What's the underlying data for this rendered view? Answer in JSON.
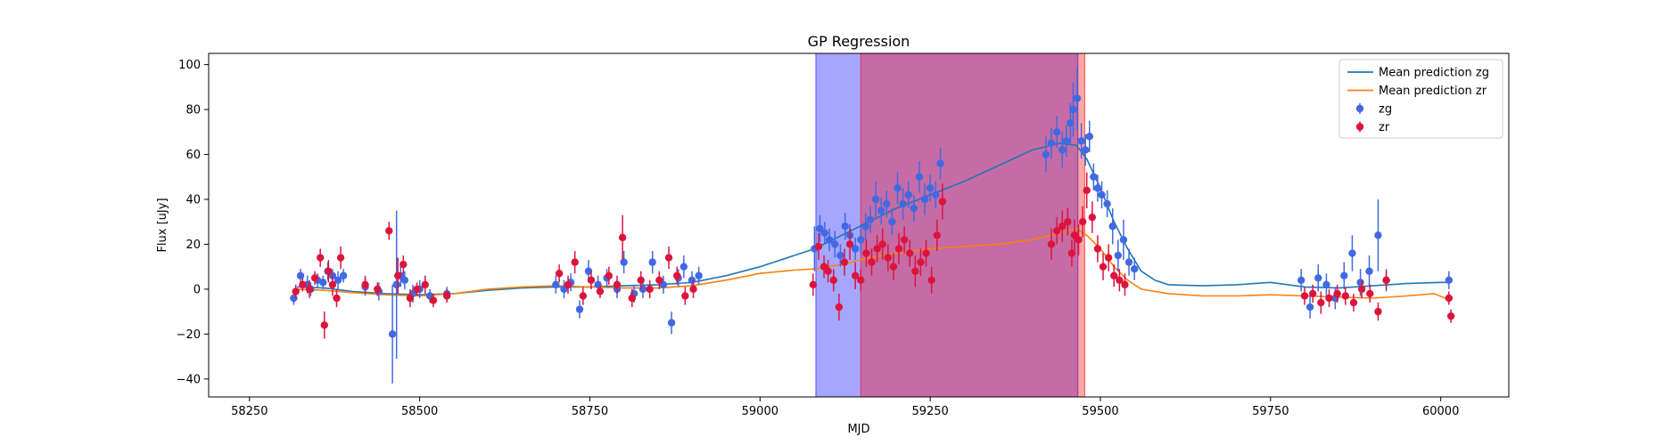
{
  "chart_data": {
    "type": "scatter",
    "title": "GP Regression",
    "xlabel": "MJD",
    "ylabel": "Flux [uJy]",
    "xlim": [
      58190,
      60100
    ],
    "ylim": [
      -48,
      105
    ],
    "xticks": [
      58250,
      58500,
      58750,
      59000,
      59250,
      59500,
      59750,
      60000
    ],
    "yticks": [
      -40,
      -20,
      0,
      20,
      40,
      60,
      80,
      100
    ],
    "grid": false,
    "legend": "top-right",
    "shaded_regions": [
      {
        "x0": 59082,
        "x1": 59467,
        "color": "#0000ff",
        "alpha": 0.35
      },
      {
        "x0": 59148,
        "x1": 59477,
        "color": "#ff0000",
        "alpha": 0.35
      }
    ],
    "series": [
      {
        "name": "Mean prediction zg",
        "kind": "line",
        "color": "#1f77b4",
        "x": [
          58320,
          58360,
          58400,
          58450,
          58500,
          58550,
          58600,
          58650,
          58700,
          58750,
          58800,
          58850,
          58900,
          58950,
          59000,
          59050,
          59080,
          59120,
          59160,
          59200,
          59250,
          59300,
          59350,
          59400,
          59440,
          59465,
          59480,
          59500,
          59520,
          59540,
          59560,
          59580,
          59600,
          59650,
          59700,
          59750,
          59800,
          59850,
          59900,
          59950,
          60000,
          60015
        ],
        "y": [
          1,
          0.5,
          -1,
          -2,
          -2.5,
          -2,
          -0.5,
          0.5,
          1,
          1,
          1.5,
          2,
          3,
          6,
          10,
          15,
          18,
          24,
          30,
          36,
          42,
          48,
          55,
          62,
          65,
          64,
          58,
          45,
          30,
          18,
          8,
          4,
          2,
          1.5,
          2,
          3,
          1,
          0.5,
          1.5,
          2.5,
          3,
          3
        ]
      },
      {
        "name": "Mean prediction zr",
        "kind": "line",
        "color": "#ff7f0e",
        "x": [
          58320,
          58360,
          58400,
          58450,
          58500,
          58550,
          58600,
          58650,
          58700,
          58750,
          58800,
          58850,
          58900,
          58950,
          59000,
          59050,
          59080,
          59120,
          59160,
          59200,
          59250,
          59300,
          59350,
          59400,
          59440,
          59465,
          59480,
          59500,
          59520,
          59540,
          59560,
          59600,
          59650,
          59700,
          59750,
          59800,
          59850,
          59900,
          59950,
          59990,
          60015
        ],
        "y": [
          0,
          -0.5,
          -1.5,
          -2.5,
          -3,
          -2,
          0,
          1,
          1.5,
          1,
          0.5,
          0.5,
          1.5,
          4,
          7,
          8.5,
          9,
          11,
          14,
          16,
          18,
          19,
          20,
          22,
          25,
          27,
          24,
          18,
          10,
          4,
          0,
          -2,
          -3,
          -3,
          -2.5,
          -3,
          -3.5,
          -4,
          -3,
          -2,
          -5
        ]
      },
      {
        "name": "zg",
        "kind": "errorbar",
        "color": "#4169e1",
        "x": [
          58315,
          58325,
          58335,
          58340,
          58350,
          58358,
          58365,
          58372,
          58380,
          58388,
          58420,
          58440,
          58460,
          58466,
          58472,
          58478,
          58490,
          58500,
          58515,
          58540,
          58700,
          58712,
          58722,
          58735,
          58748,
          58762,
          58775,
          58790,
          58800,
          58815,
          58828,
          58842,
          58858,
          58870,
          58880,
          58888,
          58900,
          58910,
          59080,
          59088,
          59095,
          59102,
          59110,
          59118,
          59125,
          59132,
          59140,
          59148,
          59155,
          59162,
          59170,
          59178,
          59186,
          59194,
          59202,
          59210,
          59218,
          59226,
          59234,
          59242,
          59250,
          59258,
          59265,
          59420,
          59428,
          59436,
          59444,
          59450,
          59456,
          59460,
          59466,
          59472,
          59478,
          59484,
          59490,
          59496,
          59502,
          59510,
          59518,
          59526,
          59534,
          59542,
          59550,
          59795,
          59808,
          59820,
          59832,
          59845,
          59858,
          59870,
          59882,
          59895,
          59908,
          59920,
          60012
        ],
        "y": [
          -4,
          6,
          2,
          0,
          4,
          3,
          8,
          6,
          4,
          6,
          1,
          -1,
          -20,
          2,
          6,
          4,
          -2,
          0,
          -3,
          -2,
          2,
          0,
          3,
          -9,
          8,
          2,
          5,
          0,
          12,
          -2,
          0,
          12,
          2,
          -15,
          5,
          10,
          4,
          6,
          18,
          27,
          25,
          22,
          20,
          15,
          28,
          24,
          18,
          22,
          28,
          31,
          40,
          35,
          38,
          30,
          45,
          38,
          42,
          36,
          50,
          40,
          45,
          42,
          56,
          60,
          65,
          70,
          62,
          66,
          74,
          80,
          85,
          66,
          62,
          68,
          50,
          45,
          42,
          38,
          28,
          15,
          22,
          12,
          9,
          4,
          -8,
          5,
          2,
          -4,
          6,
          16,
          3,
          8,
          24,
          4,
          4
        ],
        "error": [
          3,
          3,
          4,
          3,
          3,
          3,
          4,
          3,
          4,
          3,
          4,
          4,
          22,
          33,
          5,
          4,
          4,
          4,
          3,
          3,
          4,
          4,
          4,
          4,
          5,
          4,
          4,
          4,
          5,
          4,
          4,
          5,
          4,
          5,
          4,
          5,
          4,
          4,
          10,
          6,
          5,
          5,
          6,
          5,
          6,
          5,
          5,
          6,
          6,
          6,
          8,
          6,
          6,
          6,
          7,
          7,
          6,
          6,
          7,
          7,
          6,
          6,
          7,
          8,
          7,
          7,
          8,
          7,
          9,
          12,
          14,
          8,
          7,
          7,
          6,
          6,
          6,
          6,
          8,
          7,
          9,
          6,
          5,
          5,
          5,
          6,
          5,
          5,
          6,
          8,
          6,
          7,
          16,
          5,
          4
        ]
      },
      {
        "name": "zr",
        "kind": "errorbar",
        "color": "#dc143c",
        "x": [
          58318,
          58328,
          58338,
          58346,
          58354,
          58360,
          58366,
          58372,
          58378,
          58384,
          58420,
          58438,
          58455,
          58468,
          58476,
          58486,
          58496,
          58508,
          58520,
          58540,
          58705,
          58718,
          58728,
          58740,
          58752,
          58765,
          58778,
          58790,
          58798,
          58812,
          58825,
          58838,
          58852,
          58866,
          58878,
          58890,
          58902,
          59078,
          59086,
          59094,
          59100,
          59108,
          59116,
          59124,
          59132,
          59140,
          59148,
          59156,
          59164,
          59172,
          59180,
          59188,
          59196,
          59204,
          59212,
          59220,
          59228,
          59236,
          59244,
          59252,
          59260,
          59268,
          59428,
          59436,
          59444,
          59452,
          59458,
          59462,
          59468,
          59474,
          59480,
          59488,
          59496,
          59504,
          59512,
          59520,
          59528,
          59536,
          59800,
          59812,
          59824,
          59836,
          59848,
          59860,
          59872,
          59884,
          59896,
          59908,
          59920,
          60012,
          60015
        ],
        "y": [
          -1,
          2,
          0,
          5,
          14,
          -16,
          8,
          2,
          -4,
          14,
          2,
          0,
          26,
          6,
          11,
          -4,
          0,
          2,
          -5,
          -3,
          7,
          2,
          12,
          -3,
          4,
          -1,
          6,
          2,
          23,
          -4,
          4,
          0,
          4,
          14,
          6,
          -3,
          0,
          2,
          19,
          10,
          8,
          4,
          -8,
          12,
          20,
          6,
          4,
          16,
          12,
          18,
          20,
          14,
          10,
          18,
          22,
          16,
          8,
          12,
          16,
          4,
          24,
          39,
          20,
          26,
          28,
          30,
          16,
          24,
          22,
          30,
          44,
          32,
          18,
          10,
          14,
          6,
          4,
          2,
          -3,
          -2,
          -6,
          -4,
          -2,
          -3,
          -6,
          0,
          -2,
          -10,
          4,
          -4,
          -12
        ],
        "error": [
          3,
          3,
          4,
          3,
          4,
          6,
          5,
          5,
          4,
          5,
          4,
          3,
          4,
          8,
          4,
          4,
          3,
          4,
          3,
          3,
          4,
          4,
          5,
          4,
          4,
          3,
          4,
          4,
          10,
          4,
          4,
          4,
          4,
          5,
          4,
          4,
          4,
          5,
          6,
          5,
          5,
          5,
          6,
          6,
          7,
          6,
          5,
          6,
          6,
          6,
          7,
          6,
          6,
          7,
          6,
          6,
          7,
          6,
          6,
          6,
          7,
          8,
          7,
          6,
          7,
          6,
          6,
          7,
          7,
          7,
          8,
          7,
          6,
          6,
          6,
          5,
          5,
          5,
          4,
          4,
          5,
          4,
          4,
          4,
          4,
          4,
          4,
          4,
          4,
          3,
          3
        ]
      }
    ]
  }
}
